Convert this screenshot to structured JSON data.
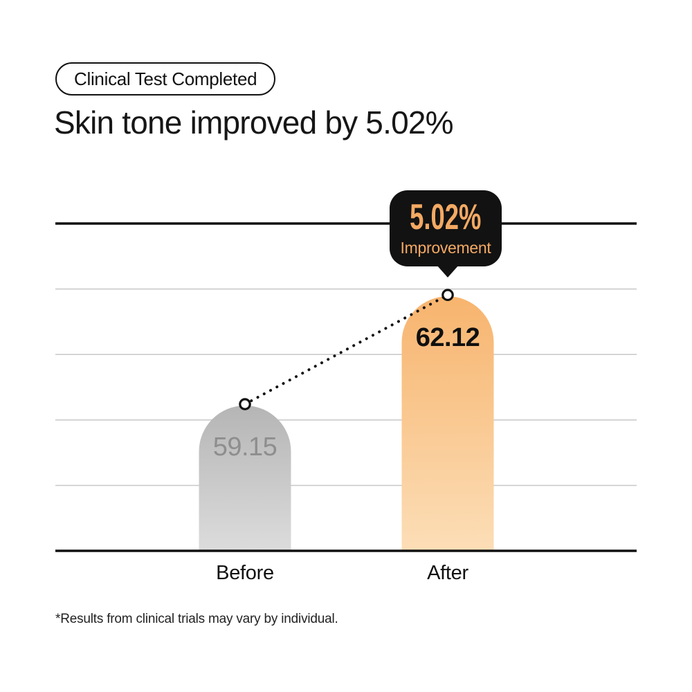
{
  "badge": {
    "label": "Clinical Test Completed"
  },
  "heading": {
    "title": "Skin tone improved by 5.02%"
  },
  "tooltip": {
    "value": "5.02%",
    "label": "Improvement"
  },
  "chart_data": {
    "type": "bar",
    "title": "Skin tone improved by 5.02%",
    "categories": [
      "Before",
      "After"
    ],
    "values": [
      59.15,
      62.12
    ],
    "value_labels": [
      "59.15",
      "62.12"
    ],
    "improvement": "5.02%",
    "annotation": {
      "text": "5.02% Improvement",
      "attached_to": "After"
    },
    "ylim": [
      55.2,
      64.1
    ],
    "grid": true,
    "gridline_count": 4,
    "trend_line": {
      "style": "dotted",
      "from": "Before",
      "to": "After"
    }
  },
  "footnote": {
    "text": "*Results from clinical trials may vary by individual."
  },
  "colors": {
    "accent_orange_text": "#f3a963",
    "tooltip_bg": "#121212",
    "before_bar_top": "#b5b5b5",
    "before_bar_bottom": "#dcdcdc",
    "after_bar_top": "#f7b46e",
    "after_bar_bottom": "#fcdeb7",
    "axis_line": "#111111",
    "grid_line": "#c7c7c7",
    "value_before_text": "#8e8e8e",
    "value_after_text": "#101010"
  }
}
